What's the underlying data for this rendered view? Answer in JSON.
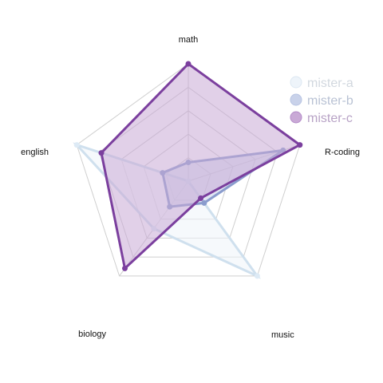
{
  "chart_data": {
    "type": "radar",
    "axes": [
      "math",
      "R-coding",
      "music",
      "biology",
      "english"
    ],
    "rmax": 1.0,
    "grid_levels": 5,
    "legend_position": "top-right",
    "series": [
      {
        "name": "mister-a",
        "values": [
          0.0,
          0.0,
          1.0,
          0.5,
          1.0
        ],
        "color": "#cfe0ee",
        "fill": "#eef4fa",
        "marker": "#ddeaf5"
      },
      {
        "name": "mister-b",
        "values": [
          0.16,
          0.85,
          0.23,
          0.27,
          0.23
        ],
        "color": "#8a9ccd",
        "fill": "#c9d2ea",
        "marker": "#8a9ccd"
      },
      {
        "name": "mister-c",
        "values": [
          1.0,
          1.0,
          0.18,
          0.92,
          0.78
        ],
        "color": "#7b3f9e",
        "fill": "#c9a9d6",
        "marker": "#7b3f9e"
      }
    ]
  }
}
